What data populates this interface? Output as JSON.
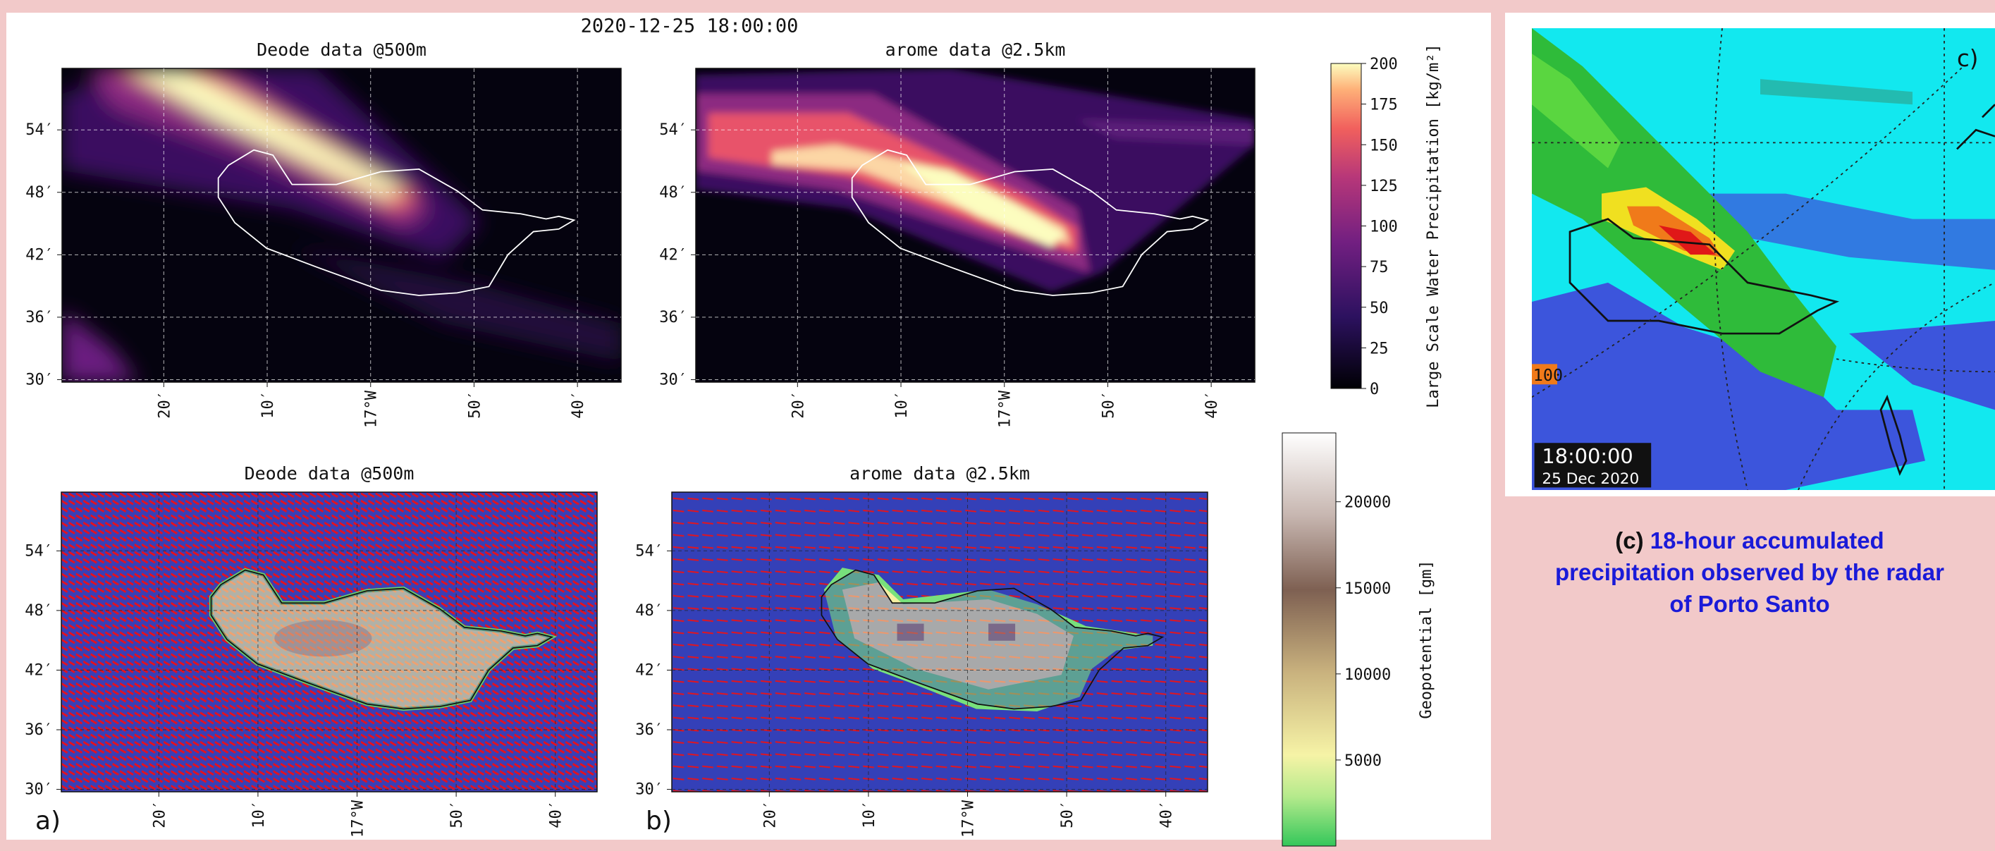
{
  "figure_title": "2020-12-25 18:00:00",
  "panels": [
    {
      "title": "Deode data @500m",
      "lat_ticks": [
        "30′",
        "36′",
        "42′",
        "48′",
        "54′"
      ],
      "lon_ticks": [
        "20′",
        "10′",
        "17°W",
        "50′",
        "40′"
      ]
    },
    {
      "title": "arome data @2.5km",
      "lat_ticks": [
        "30′",
        "36′",
        "42′",
        "48′",
        "54′"
      ],
      "lon_ticks": [
        "20′",
        "10′",
        "17°W",
        "50′",
        "40′"
      ]
    },
    {
      "title": "Deode data @500m",
      "label": "a)",
      "lat_ticks": [
        "30′",
        "36′",
        "42′",
        "48′",
        "54′"
      ],
      "lon_ticks": [
        "20′",
        "10′",
        "17°W",
        "50′",
        "40′"
      ]
    },
    {
      "title": "arome data @2.5km",
      "label": "b)",
      "lat_ticks": [
        "30′",
        "36′",
        "42′",
        "48′",
        "54′"
      ],
      "lon_ticks": [
        "20′",
        "10′",
        "17°W",
        "50′",
        "40′"
      ]
    }
  ],
  "colorbars": [
    {
      "label": "Large Scale Water Precipitation [kg/m²]",
      "lim": [
        0,
        200
      ],
      "ticks": [
        0,
        25,
        50,
        75,
        100,
        125,
        150,
        175,
        200
      ]
    },
    {
      "label": "Geopotential [gm]",
      "lim": [
        0,
        24000
      ],
      "ticks": [
        5000,
        10000,
        15000,
        20000
      ]
    }
  ],
  "radar": {
    "label": "c)",
    "time": "18:00:00",
    "date": "25 Dec 2020",
    "range_marker": "100"
  },
  "caption": {
    "label": "(c)",
    "text": "18-hour accumulated precipitation observed by the radar of Porto Santo"
  }
}
